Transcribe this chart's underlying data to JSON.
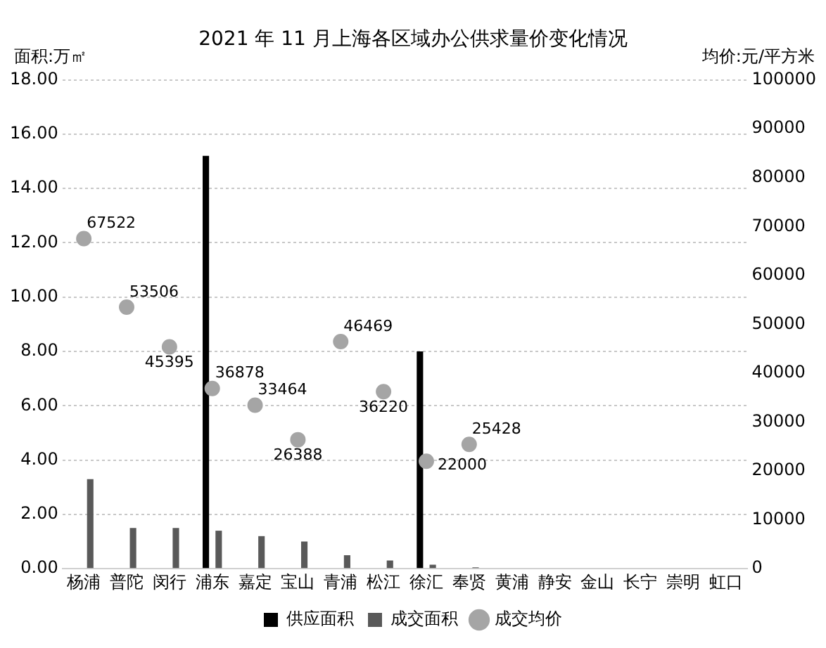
{
  "chart_data": {
    "type": "bar",
    "title": "2021 年 11 月上海各区域办公供求量价变化情况",
    "ylabel": "面积:万㎡",
    "y2label": "均价:元/平方米",
    "categories": [
      "杨浦",
      "普陀",
      "闵行",
      "浦东",
      "嘉定",
      "宝山",
      "青浦",
      "松江",
      "徐汇",
      "奉贤",
      "黄浦",
      "静安",
      "金山",
      "长宁",
      "崇明",
      "虹口"
    ],
    "series": [
      {
        "name": "供应面积",
        "color": "#000000",
        "values": [
          null,
          null,
          null,
          15.2,
          null,
          null,
          null,
          null,
          8.0,
          null,
          null,
          null,
          null,
          null,
          null,
          null
        ]
      },
      {
        "name": "成交面积",
        "color": "#595959",
        "values": [
          3.3,
          1.5,
          1.5,
          1.4,
          1.2,
          1.0,
          0.5,
          0.3,
          0.15,
          0.05,
          null,
          null,
          null,
          null,
          null,
          null
        ]
      },
      {
        "name": "成交均价",
        "type": "scatter",
        "axis": "y2",
        "color": "#a5a5a5",
        "marker": "circle",
        "values": [
          67522,
          53506,
          45395,
          36878,
          33464,
          26388,
          46469,
          36220,
          22000,
          25428,
          null,
          null,
          null,
          null,
          null,
          null
        ],
        "value_labels": [
          "67522",
          "53506",
          "45395",
          "36878",
          "33464",
          "26388",
          "46469",
          "36220",
          "22000",
          "25428",
          null,
          null,
          null,
          null,
          null,
          null
        ]
      }
    ],
    "ylim": [
      0,
      18
    ],
    "yticks": [
      {
        "value": 0,
        "label": "0.00"
      },
      {
        "value": 2,
        "label": "2.00"
      },
      {
        "value": 4,
        "label": "4.00"
      },
      {
        "value": 6,
        "label": "6.00"
      },
      {
        "value": 8,
        "label": "8.00"
      },
      {
        "value": 10,
        "label": "10.00"
      },
      {
        "value": 12,
        "label": "12.00"
      },
      {
        "value": 14,
        "label": "14.00"
      },
      {
        "value": 16,
        "label": "16.00"
      },
      {
        "value": 18,
        "label": "18.00"
      }
    ],
    "y2lim": [
      0,
      100000
    ],
    "y2ticks": [
      0,
      10000,
      20000,
      30000,
      40000,
      50000,
      60000,
      70000,
      80000,
      90000,
      100000
    ],
    "grid": "y",
    "legend": "bottom"
  }
}
